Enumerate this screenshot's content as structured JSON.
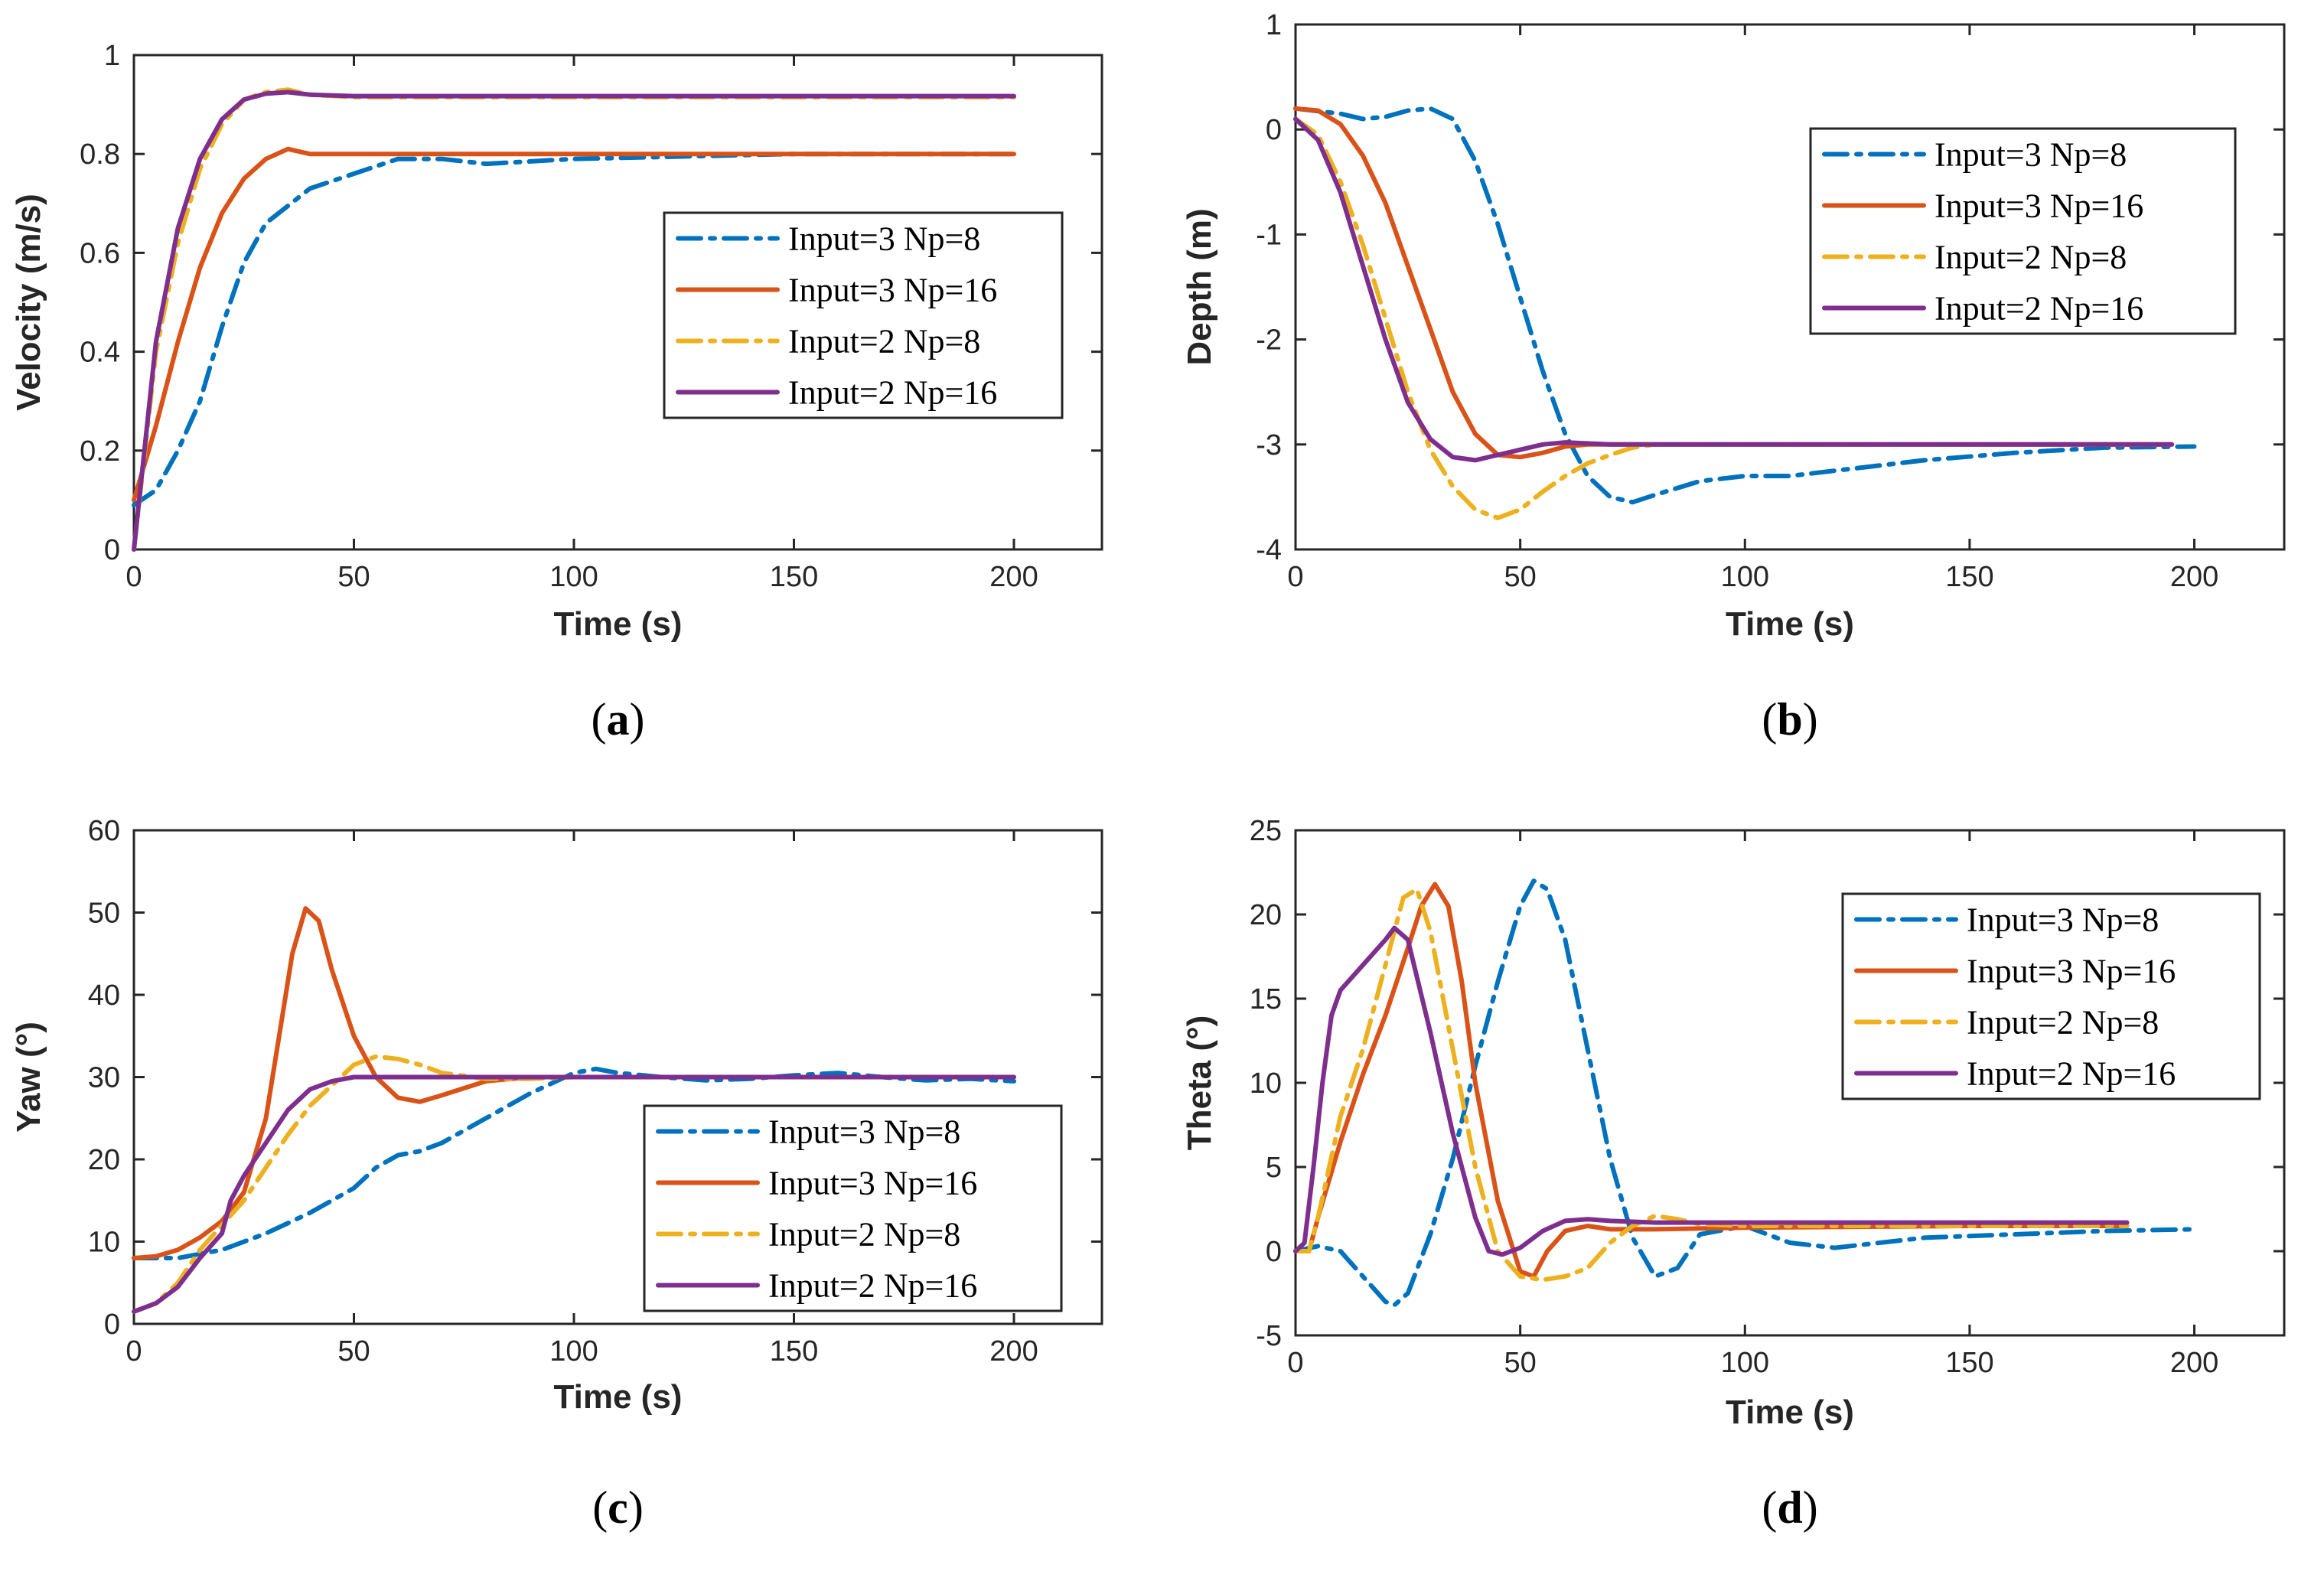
{
  "colors": {
    "series_colors": [
      "#0072bd",
      "#d95319",
      "#edb120",
      "#7e2f8e"
    ],
    "axis_color": "#262626",
    "background": "#ffffff"
  },
  "chart_data": [
    {
      "id": "a",
      "type": "line",
      "panel_label": "a",
      "xlabel": "Time (s)",
      "ylabel": "Velocity (m/s)",
      "xlim": [
        0,
        220
      ],
      "ylim": [
        0,
        1
      ],
      "xticks": [
        0,
        50,
        100,
        150,
        200
      ],
      "yticks": [
        0,
        0.2,
        0.4,
        0.6,
        0.8,
        1
      ],
      "ytick_labels": [
        "0",
        "0.2",
        "0.4",
        "0.6",
        "0.8",
        "1"
      ],
      "grid": false,
      "legend_position": "right",
      "series": [
        {
          "name": "Input=3 Np=8",
          "style": "dashdot",
          "color": "#0072bd",
          "x": [
            0,
            5,
            10,
            15,
            20,
            25,
            30,
            40,
            50,
            60,
            70,
            80,
            100,
            150,
            200
          ],
          "y": [
            0.09,
            0.12,
            0.2,
            0.3,
            0.45,
            0.58,
            0.66,
            0.73,
            0.76,
            0.79,
            0.79,
            0.78,
            0.79,
            0.8,
            0.8
          ]
        },
        {
          "name": "Input=3 Np=16",
          "style": "solid",
          "color": "#d95319",
          "x": [
            0,
            5,
            10,
            15,
            20,
            25,
            30,
            35,
            40,
            50,
            60,
            80,
            100,
            150,
            200
          ],
          "y": [
            0.1,
            0.25,
            0.42,
            0.57,
            0.68,
            0.75,
            0.79,
            0.81,
            0.8,
            0.8,
            0.8,
            0.8,
            0.8,
            0.8,
            0.8
          ]
        },
        {
          "name": "Input=2 Np=8",
          "style": "dashdot",
          "color": "#edb120",
          "x": [
            0,
            5,
            10,
            15,
            20,
            25,
            30,
            35,
            40,
            50,
            60,
            80,
            100,
            150,
            200
          ],
          "y": [
            0,
            0.4,
            0.62,
            0.77,
            0.86,
            0.91,
            0.925,
            0.93,
            0.92,
            0.915,
            0.915,
            0.915,
            0.915,
            0.915,
            0.915
          ]
        },
        {
          "name": "Input=2 Np=16",
          "style": "solid",
          "color": "#7e2f8e",
          "x": [
            0,
            5,
            10,
            15,
            20,
            25,
            30,
            35,
            40,
            50,
            60,
            80,
            100,
            150,
            200
          ],
          "y": [
            0,
            0.42,
            0.65,
            0.79,
            0.87,
            0.91,
            0.922,
            0.925,
            0.92,
            0.917,
            0.917,
            0.917,
            0.917,
            0.917,
            0.917
          ]
        }
      ]
    },
    {
      "id": "b",
      "type": "line",
      "panel_label": "b",
      "xlabel": "Time (s)",
      "ylabel": "Depth (m)",
      "xlim": [
        0,
        220
      ],
      "ylim": [
        -4,
        1
      ],
      "xticks": [
        0,
        50,
        100,
        150,
        200
      ],
      "yticks": [
        -4,
        -3,
        -2,
        -1,
        0,
        1
      ],
      "ytick_labels": [
        "-4",
        "-3",
        "-2",
        "-1",
        "0",
        "1"
      ],
      "grid": false,
      "legend_position": "top-right",
      "series": [
        {
          "name": "Input=3 Np=8",
          "style": "dashdot",
          "color": "#0072bd",
          "x": [
            0,
            10,
            15,
            20,
            25,
            30,
            35,
            40,
            45,
            50,
            55,
            60,
            65,
            70,
            75,
            80,
            90,
            100,
            110,
            120,
            140,
            160,
            180,
            200
          ],
          "y": [
            0.2,
            0.15,
            0.1,
            0.12,
            0.18,
            0.2,
            0.1,
            -0.3,
            -0.9,
            -1.6,
            -2.3,
            -2.9,
            -3.3,
            -3.5,
            -3.55,
            -3.48,
            -3.35,
            -3.3,
            -3.3,
            -3.25,
            -3.15,
            -3.08,
            -3.03,
            -3.02
          ]
        },
        {
          "name": "Input=3 Np=16",
          "style": "solid",
          "color": "#d95319",
          "x": [
            0,
            5,
            10,
            15,
            20,
            25,
            30,
            35,
            40,
            45,
            50,
            55,
            60,
            65,
            70,
            80,
            100,
            150,
            195
          ],
          "y": [
            0.2,
            0.18,
            0.05,
            -0.25,
            -0.7,
            -1.3,
            -1.9,
            -2.5,
            -2.9,
            -3.1,
            -3.12,
            -3.08,
            -3.02,
            -3.0,
            -3.0,
            -3.0,
            -3.0,
            -3.0,
            -3.0
          ]
        },
        {
          "name": "Input=2 Np=8",
          "style": "dashdot",
          "color": "#edb120",
          "x": [
            0,
            5,
            10,
            15,
            20,
            25,
            30,
            35,
            40,
            45,
            50,
            55,
            60,
            65,
            70,
            75,
            80,
            100,
            150,
            195
          ],
          "y": [
            0.1,
            -0.05,
            -0.5,
            -1.1,
            -1.8,
            -2.5,
            -3.05,
            -3.4,
            -3.62,
            -3.7,
            -3.62,
            -3.45,
            -3.3,
            -3.18,
            -3.1,
            -3.03,
            -3.0,
            -3.0,
            -3.0,
            -3.0
          ]
        },
        {
          "name": "Input=2 Np=16",
          "style": "solid",
          "color": "#7e2f8e",
          "x": [
            0,
            5,
            10,
            15,
            20,
            25,
            30,
            35,
            40,
            45,
            50,
            55,
            60,
            70,
            80,
            100,
            150,
            195
          ],
          "y": [
            0.1,
            -0.1,
            -0.6,
            -1.3,
            -2.0,
            -2.6,
            -2.95,
            -3.12,
            -3.15,
            -3.1,
            -3.05,
            -3.0,
            -2.98,
            -3.0,
            -3.0,
            -3.0,
            -3.0,
            -3.0
          ]
        }
      ]
    },
    {
      "id": "c",
      "type": "line",
      "panel_label": "c",
      "xlabel": "Time (s)",
      "ylabel": "Yaw (°)",
      "xlim": [
        0,
        220
      ],
      "ylim": [
        0,
        60
      ],
      "xticks": [
        0,
        50,
        100,
        150,
        200
      ],
      "yticks": [
        0,
        10,
        20,
        30,
        40,
        50,
        60
      ],
      "ytick_labels": [
        "0",
        "10",
        "20",
        "30",
        "40",
        "50",
        "60"
      ],
      "grid": false,
      "legend_position": "bottom-right",
      "series": [
        {
          "name": "Input=3 Np=8",
          "style": "dashdot",
          "color": "#0072bd",
          "x": [
            0,
            10,
            20,
            30,
            40,
            50,
            55,
            60,
            65,
            70,
            80,
            90,
            100,
            105,
            110,
            120,
            130,
            140,
            150,
            160,
            170,
            180,
            190,
            200
          ],
          "y": [
            8,
            8,
            9,
            11,
            13.5,
            16.5,
            19,
            20.5,
            21,
            22,
            25,
            28,
            30.5,
            31,
            30.5,
            30,
            29.6,
            29.8,
            30.2,
            30.5,
            30,
            29.6,
            29.8,
            29.5
          ]
        },
        {
          "name": "Input=3 Np=16",
          "style": "solid",
          "color": "#d95319",
          "x": [
            0,
            5,
            10,
            15,
            20,
            25,
            30,
            33,
            36,
            39,
            42,
            45,
            50,
            55,
            60,
            65,
            70,
            80,
            90,
            100,
            150,
            200
          ],
          "y": [
            8,
            8.2,
            9,
            10.5,
            12.5,
            16,
            25,
            35,
            45,
            50.5,
            49,
            43,
            35,
            30,
            27.5,
            27,
            27.8,
            29.5,
            30,
            30,
            30,
            30
          ]
        },
        {
          "name": "Input=2 Np=8",
          "style": "dashdot",
          "color": "#edb120",
          "x": [
            0,
            5,
            10,
            15,
            20,
            25,
            30,
            35,
            40,
            45,
            50,
            55,
            60,
            65,
            70,
            80,
            90,
            100,
            150,
            200
          ],
          "y": [
            1.5,
            2.5,
            5,
            9,
            12,
            15,
            19,
            23,
            26.5,
            29,
            31.5,
            32.5,
            32.2,
            31.5,
            30.5,
            29.8,
            29.8,
            30,
            30,
            30
          ]
        },
        {
          "name": "Input=2 Np=16",
          "style": "solid",
          "color": "#7e2f8e",
          "x": [
            0,
            5,
            10,
            15,
            20,
            22,
            25,
            30,
            35,
            40,
            45,
            50,
            55,
            60,
            70,
            80,
            100,
            150,
            200
          ],
          "y": [
            1.5,
            2.5,
            4.5,
            8,
            11,
            15,
            18,
            22,
            26,
            28.5,
            29.5,
            30,
            30,
            30,
            30,
            30,
            30,
            30,
            30
          ]
        }
      ]
    },
    {
      "id": "d",
      "type": "line",
      "panel_label": "d",
      "xlabel": "Time (s)",
      "ylabel": "Theta (°)",
      "xlim": [
        0,
        220
      ],
      "ylim": [
        -5,
        25
      ],
      "xticks": [
        0,
        50,
        100,
        150,
        200
      ],
      "yticks": [
        -5,
        0,
        5,
        10,
        15,
        20,
        25
      ],
      "ytick_labels": [
        "-5",
        "0",
        "5",
        "10",
        "15",
        "20",
        "25"
      ],
      "grid": false,
      "legend_position": "top-right",
      "series": [
        {
          "name": "Input=3 Np=8",
          "style": "dashdot",
          "color": "#0072bd",
          "x": [
            0,
            5,
            10,
            15,
            20,
            22,
            25,
            30,
            35,
            40,
            45,
            50,
            53,
            56,
            60,
            65,
            70,
            75,
            80,
            85,
            90,
            100,
            110,
            120,
            140,
            160,
            180,
            200
          ],
          "y": [
            0,
            0.3,
            0,
            -1.5,
            -3,
            -3.2,
            -2.5,
            1,
            5.5,
            11,
            16,
            20.5,
            22,
            21.5,
            18.5,
            12,
            5.5,
            0.8,
            -1.5,
            -1,
            1,
            1.5,
            0.5,
            0.2,
            0.8,
            1,
            1.2,
            1.3
          ]
        },
        {
          "name": "Input=3 Np=16",
          "style": "solid",
          "color": "#d95319",
          "x": [
            0,
            3,
            5,
            10,
            15,
            20,
            25,
            28,
            31,
            34,
            37,
            40,
            45,
            50,
            53,
            56,
            60,
            65,
            70,
            80,
            100,
            150,
            185
          ],
          "y": [
            0,
            0,
            2,
            6.5,
            10.5,
            14,
            18,
            20.5,
            21.8,
            20.5,
            16,
            10,
            3,
            -1.2,
            -1.5,
            0,
            1.2,
            1.5,
            1.3,
            1.3,
            1.4,
            1.5,
            1.5
          ]
        },
        {
          "name": "Input=2 Np=8",
          "style": "dashdot",
          "color": "#edb120",
          "x": [
            0,
            3,
            5,
            10,
            15,
            20,
            24,
            27,
            30,
            35,
            40,
            45,
            50,
            55,
            60,
            65,
            70,
            75,
            80,
            85,
            90,
            100,
            150,
            185
          ],
          "y": [
            0,
            0,
            2,
            8,
            12,
            17,
            21,
            21.5,
            19,
            12,
            5,
            0,
            -1.5,
            -1.7,
            -1.5,
            -1,
            0.5,
            1.5,
            2.1,
            1.9,
            1.6,
            1.5,
            1.5,
            1.5
          ]
        },
        {
          "name": "Input=2 Np=16",
          "style": "solid",
          "color": "#7e2f8e",
          "x": [
            0,
            2,
            4,
            6,
            8,
            10,
            15,
            20,
            22,
            25,
            30,
            35,
            40,
            43,
            46,
            50,
            55,
            60,
            65,
            70,
            80,
            100,
            150,
            185
          ],
          "y": [
            0,
            0.5,
            5,
            10,
            14,
            15.5,
            17,
            18.5,
            19.2,
            18.5,
            13,
            7,
            2,
            0,
            -0.2,
            0.2,
            1.2,
            1.8,
            1.9,
            1.8,
            1.7,
            1.7,
            1.7,
            1.7
          ]
        }
      ]
    }
  ]
}
